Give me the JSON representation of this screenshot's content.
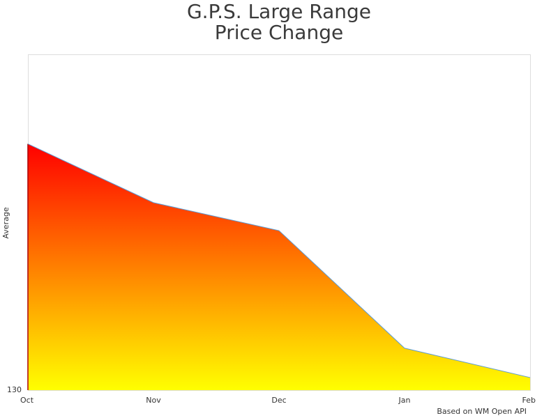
{
  "chart_data": {
    "type": "area",
    "title": [
      "G.P.S. Large Range",
      "Price Change"
    ],
    "y_label": "Average",
    "categories": [
      "Oct",
      "Nov",
      "Dec",
      "Jan",
      "Feb"
    ],
    "series": [
      {
        "name": "Average",
        "values": [
          218,
          197,
          187,
          145,
          134.5
        ],
        "color": "#5b9bd5",
        "gradient": [
          "#ff0000",
          "#ffff00"
        ]
      }
    ],
    "ylim": [
      130,
      250
    ],
    "yticks": [
      130
    ],
    "credit": "Based on WM Open API"
  }
}
